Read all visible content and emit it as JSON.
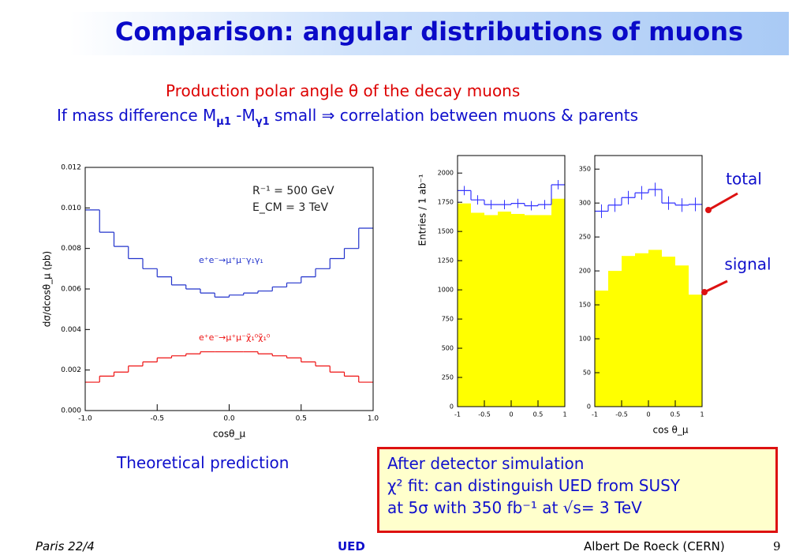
{
  "title": "Comparison: angular distributions of muons",
  "subtitle": "Production polar angle θ of the decay muons",
  "condition": [
    "If mass difference M",
    "μ1",
    " -M",
    "γ1",
    " small ⇒ correlation between muons & parents"
  ],
  "caption_left": "Theoretical prediction",
  "box": [
    "After detector simulation",
    "χ² fit: can distinguish UED from SUSY",
    "at 5σ with 350 fb⁻¹ at √s= 3 TeV"
  ],
  "footer": {
    "left": "Paris  22/4",
    "center": "UED",
    "right": "Albert De Roeck (CERN)",
    "page": "9"
  },
  "chart_data": [
    {
      "type": "histogram",
      "ylabel": "dσ/dcosθ_μ (pb)",
      "xlabel": "cosθ_μ",
      "bins": [
        -1.0,
        -0.9,
        -0.8,
        -0.7,
        -0.6,
        -0.5,
        -0.4,
        -0.3,
        -0.2,
        -0.1,
        0.0,
        0.1,
        0.2,
        0.3,
        0.4,
        0.5,
        0.6,
        0.7,
        0.8,
        0.9,
        1.0
      ],
      "series": [
        {
          "color": "#2233cc",
          "style": "step",
          "values": [
            0.0099,
            0.0088,
            0.0081,
            0.0075,
            0.007,
            0.0066,
            0.0062,
            0.006,
            0.0058,
            0.0056,
            0.0057,
            0.0058,
            0.0059,
            0.0061,
            0.0063,
            0.0066,
            0.007,
            0.0075,
            0.008,
            0.009
          ]
        },
        {
          "color": "#ee1111",
          "style": "step",
          "values": [
            0.0014,
            0.0017,
            0.0019,
            0.0022,
            0.0024,
            0.0026,
            0.0027,
            0.0028,
            0.0029,
            0.0029,
            0.0029,
            0.0029,
            0.0028,
            0.0027,
            0.0026,
            0.0024,
            0.0022,
            0.0019,
            0.0017,
            0.0014
          ]
        }
      ],
      "annotations": [
        {
          "text": "R⁻¹ = 500 GeV",
          "color": "#222222"
        },
        {
          "text": "E_CM = 3 TeV",
          "color": "#222222"
        },
        {
          "text": "e⁺e⁻→μ⁺μ⁻γ₁γ₁",
          "color": "#2233cc"
        },
        {
          "text": "e⁺e⁻→μ⁺μ⁻χ̃₁⁰χ̃₁⁰",
          "color": "#ee1111"
        }
      ],
      "xlim": [
        -1.0,
        1.0
      ],
      "xticks": [
        {
          "value": -1.0,
          "label": "-1.0"
        },
        -0.5,
        {
          "value": 0,
          "label": "0.0"
        },
        0.5,
        {
          "value": 1.0,
          "label": "1.0"
        }
      ],
      "ylim": [
        0,
        0.012
      ],
      "yticks": [
        {
          "value": 0,
          "label": "0.000"
        },
        {
          "value": 0.002,
          "label": "0.002"
        },
        {
          "value": 0.004,
          "label": "0.004"
        },
        {
          "value": 0.006,
          "label": "0.006"
        },
        {
          "value": 0.008,
          "label": "0.008"
        },
        {
          "value": 0.01,
          "label": "0.010"
        },
        {
          "value": 0.012,
          "label": "0.012"
        }
      ]
    },
    {
      "type": "histogram",
      "ylabel": "Entries / 1 ab⁻¹",
      "bins": [
        -1,
        -0.75,
        -0.5,
        -0.25,
        0,
        0.25,
        0.5,
        0.75,
        1
      ],
      "series": [
        {
          "color": "#ffff00",
          "style": "filled",
          "values": [
            1740,
            1660,
            1640,
            1670,
            1650,
            1640,
            1640,
            1780
          ]
        },
        {
          "color": "#3333ff",
          "style": "step",
          "values": [
            1850,
            1770,
            1730,
            1730,
            1740,
            1720,
            1730,
            1900
          ],
          "errors": [
            40,
            40,
            40,
            40,
            40,
            40,
            40,
            40
          ]
        }
      ],
      "xlim": [
        -1,
        1
      ],
      "xticks": [
        -1,
        -0.5,
        0,
        0.5,
        1
      ],
      "ylim": [
        0,
        2150
      ],
      "yticks": [
        0,
        250,
        500,
        750,
        1000,
        1250,
        1500,
        1750,
        2000
      ]
    },
    {
      "type": "histogram",
      "xlabel": "cos θ_μ",
      "bins": [
        -1,
        -0.75,
        -0.5,
        -0.25,
        0,
        0.25,
        0.5,
        0.75,
        1
      ],
      "series": [
        {
          "name": "signal",
          "color": "#ffff00",
          "style": "filled",
          "values": [
            171,
            200,
            222,
            226,
            231,
            221,
            208,
            165
          ]
        },
        {
          "name": "total",
          "color": "#3333ff",
          "style": "step",
          "values": [
            288,
            297,
            308,
            315,
            320,
            300,
            297,
            298
          ],
          "errors": [
            10,
            10,
            10,
            10,
            10,
            10,
            10,
            10
          ]
        }
      ],
      "xlim": [
        -1,
        1
      ],
      "xticks": [
        -1,
        -0.5,
        0,
        0.5,
        1
      ],
      "ylim": [
        0,
        370
      ],
      "yticks": [
        0,
        50,
        100,
        150,
        200,
        250,
        300,
        350
      ]
    }
  ]
}
